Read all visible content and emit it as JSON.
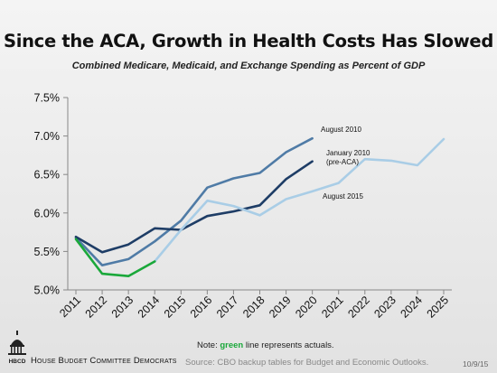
{
  "header": {
    "title": "Since the ACA, Growth in Health Costs Has Slowed",
    "subtitle": "Combined Medicare, Medicaid, and Exchange Spending as Percent of GDP"
  },
  "footer": {
    "note_prefix": "Note: ",
    "note_green_word": "green",
    "note_suffix": " line represents actuals.",
    "source": "Source: CBO backup tables for Budget and Economic Outlooks.",
    "org_name": "House Budget Committee Democrats",
    "logo_text": "HBCD",
    "date": "10/9/15"
  },
  "colors": {
    "august_2010": "#4f7ba6",
    "january_2010": "#1e3d66",
    "august_2015": "#a9cde6",
    "actuals": "#1aa83a"
  },
  "chart_data": {
    "type": "line",
    "title": "Since the ACA, Growth in Health Costs Has Slowed",
    "subtitle": "Combined Medicare, Medicaid, and Exchange Spending as Percent of GDP",
    "xlabel": "",
    "ylabel": "",
    "ylim": [
      5.0,
      7.5
    ],
    "y_ticks": [
      5.0,
      5.5,
      6.0,
      6.5,
      7.0,
      7.5
    ],
    "y_tick_labels": [
      "5.0%",
      "5.5%",
      "6.0%",
      "6.5%",
      "7.0%",
      "7.5%"
    ],
    "x_categories": [
      "2011",
      "2012",
      "2013",
      "2014",
      "2015",
      "2016",
      "2017",
      "2018",
      "2019",
      "2020",
      "2021",
      "2022",
      "2023",
      "2024",
      "2025"
    ],
    "grid": false,
    "series": [
      {
        "name": "August 2010",
        "label": "August 2010",
        "color_key": "august_2010",
        "x": [
          "2011",
          "2012",
          "2013",
          "2014",
          "2015",
          "2016",
          "2017",
          "2018",
          "2019",
          "2020"
        ],
        "values": [
          5.68,
          5.32,
          5.4,
          5.63,
          5.9,
          6.33,
          6.45,
          6.52,
          6.79,
          6.97
        ]
      },
      {
        "name": "January 2010 (pre-ACA)",
        "label_line1": "January 2010",
        "label_line2": "(pre-ACA)",
        "color_key": "january_2010",
        "x": [
          "2011",
          "2012",
          "2013",
          "2014",
          "2015",
          "2016",
          "2017",
          "2018",
          "2019",
          "2020"
        ],
        "values": [
          5.69,
          5.49,
          5.59,
          5.8,
          5.78,
          5.96,
          6.02,
          6.1,
          6.44,
          6.67
        ]
      },
      {
        "name": "August 2015",
        "label": "August  2015",
        "color_key": "august_2015",
        "x": [
          "2014",
          "2015",
          "2016",
          "2017",
          "2018",
          "2019",
          "2020",
          "2021",
          "2022",
          "2023",
          "2024",
          "2025"
        ],
        "values": [
          5.37,
          5.78,
          6.16,
          6.09,
          5.97,
          6.18,
          6.28,
          6.39,
          6.7,
          6.68,
          6.62,
          6.96
        ]
      },
      {
        "name": "Actuals",
        "color_key": "actuals",
        "x": [
          "2011",
          "2012",
          "2013",
          "2014"
        ],
        "values": [
          5.66,
          5.21,
          5.18,
          5.37
        ]
      }
    ]
  }
}
